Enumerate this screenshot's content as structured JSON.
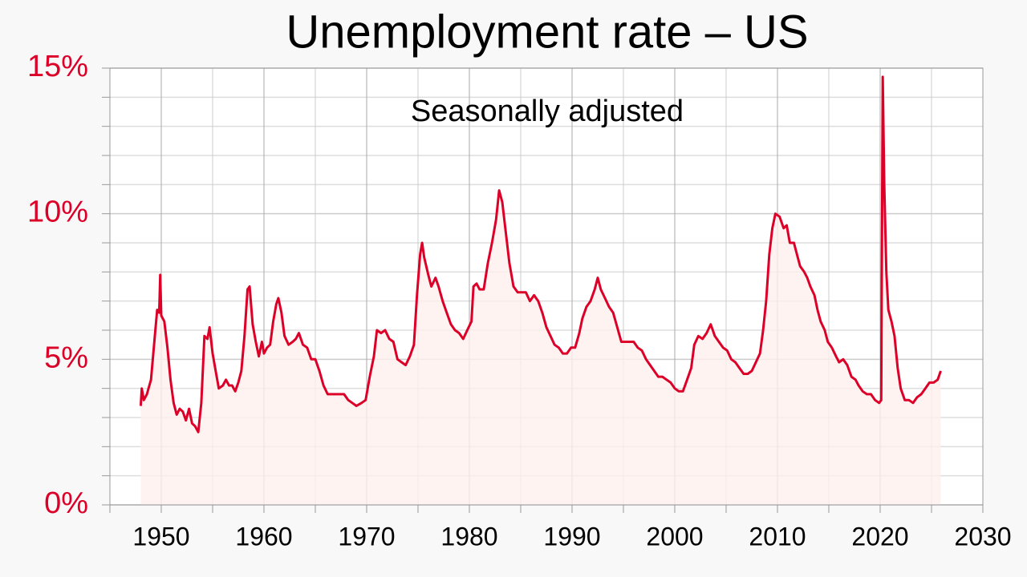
{
  "chart_data": {
    "type": "line",
    "title": "Unemployment rate – US",
    "subtitle": "Seasonally adjusted",
    "color": "#dc0028",
    "fill_color": "#fff0ee",
    "grid": true,
    "xlim": [
      1945,
      2030
    ],
    "xticks": [
      1950,
      1960,
      1970,
      1980,
      1990,
      2000,
      2010,
      2020,
      2030
    ],
    "x_minor_ticks": [
      1945,
      1955,
      1965,
      1975,
      1985,
      1995,
      2005,
      2015,
      2025
    ],
    "ylim": [
      0,
      15
    ],
    "yticks": [
      {
        "value": 0,
        "label": "0%"
      },
      {
        "value": 5,
        "label": "5%"
      },
      {
        "value": 10,
        "label": "10%"
      },
      {
        "value": 15,
        "label": "15%"
      }
    ],
    "y_minor_ticks": [
      1,
      2,
      3,
      4,
      6,
      7,
      8,
      9,
      11,
      12,
      13,
      14
    ],
    "x": [
      1948.0,
      1948.1,
      1948.3,
      1948.6,
      1949.0,
      1949.4,
      1949.6,
      1949.8,
      1949.9,
      1950.0,
      1950.3,
      1950.6,
      1950.9,
      1951.2,
      1951.5,
      1951.8,
      1952.1,
      1952.4,
      1952.7,
      1953.0,
      1953.3,
      1953.6,
      1953.9,
      1954.2,
      1954.5,
      1954.7,
      1955.0,
      1955.3,
      1955.6,
      1956.0,
      1956.3,
      1956.6,
      1956.9,
      1957.2,
      1957.5,
      1957.8,
      1958.1,
      1958.4,
      1958.6,
      1958.9,
      1959.2,
      1959.5,
      1959.8,
      1960.0,
      1960.3,
      1960.6,
      1960.9,
      1961.2,
      1961.4,
      1961.7,
      1962.0,
      1962.4,
      1962.8,
      1963.1,
      1963.4,
      1963.8,
      1964.2,
      1964.6,
      1965.0,
      1965.4,
      1965.8,
      1966.2,
      1966.6,
      1967.0,
      1967.4,
      1967.8,
      1968.2,
      1968.6,
      1969.0,
      1969.5,
      1969.9,
      1970.3,
      1970.7,
      1971.0,
      1971.4,
      1971.8,
      1972.2,
      1972.6,
      1973.0,
      1973.4,
      1973.8,
      1974.2,
      1974.6,
      1974.9,
      1975.2,
      1975.4,
      1975.6,
      1976.0,
      1976.3,
      1976.7,
      1977.0,
      1977.4,
      1977.8,
      1978.2,
      1978.6,
      1979.0,
      1979.4,
      1979.8,
      1980.2,
      1980.4,
      1980.7,
      1981.0,
      1981.4,
      1981.8,
      1982.2,
      1982.6,
      1982.9,
      1983.2,
      1983.5,
      1983.9,
      1984.3,
      1984.7,
      1985.1,
      1985.5,
      1985.9,
      1986.3,
      1986.7,
      1987.1,
      1987.5,
      1987.9,
      1988.3,
      1988.7,
      1989.1,
      1989.5,
      1989.9,
      1990.3,
      1990.7,
      1991.0,
      1991.4,
      1991.8,
      1992.2,
      1992.5,
      1992.8,
      1993.2,
      1993.6,
      1994.0,
      1994.4,
      1994.8,
      1995.2,
      1995.6,
      1996.0,
      1996.4,
      1996.8,
      1997.2,
      1997.6,
      1998.0,
      1998.4,
      1998.8,
      1999.2,
      1999.6,
      2000.0,
      2000.4,
      2000.8,
      2001.2,
      2001.6,
      2001.9,
      2002.3,
      2002.7,
      2003.1,
      2003.5,
      2003.9,
      2004.3,
      2004.7,
      2005.1,
      2005.5,
      2005.9,
      2006.3,
      2006.7,
      2007.1,
      2007.5,
      2007.9,
      2008.3,
      2008.6,
      2008.9,
      2009.2,
      2009.5,
      2009.8,
      2010.2,
      2010.6,
      2010.9,
      2011.2,
      2011.6,
      2011.9,
      2012.2,
      2012.6,
      2012.9,
      2013.2,
      2013.6,
      2013.9,
      2014.2,
      2014.6,
      2014.9,
      2015.3,
      2015.7,
      2016.0,
      2016.4,
      2016.8,
      2017.2,
      2017.6,
      2017.9,
      2018.3,
      2018.7,
      2019.1,
      2019.5,
      2019.9,
      2020.1,
      2020.25,
      2020.4,
      2020.6,
      2020.8,
      2021.1,
      2021.4,
      2021.7,
      2022.0,
      2022.4,
      2022.8,
      2023.2,
      2023.6,
      2024.0,
      2024.4,
      2024.8,
      2025.2,
      2025.6,
      2025.9
    ],
    "values": [
      3.4,
      4.0,
      3.6,
      3.8,
      4.3,
      5.9,
      6.7,
      6.6,
      7.9,
      6.5,
      6.3,
      5.4,
      4.3,
      3.5,
      3.1,
      3.3,
      3.2,
      2.9,
      3.3,
      2.8,
      2.7,
      2.5,
      3.5,
      5.8,
      5.7,
      6.1,
      5.2,
      4.6,
      4.0,
      4.1,
      4.3,
      4.1,
      4.1,
      3.9,
      4.2,
      4.6,
      5.8,
      7.4,
      7.5,
      6.2,
      5.6,
      5.1,
      5.6,
      5.2,
      5.4,
      5.5,
      6.3,
      6.9,
      7.1,
      6.6,
      5.8,
      5.5,
      5.6,
      5.7,
      5.9,
      5.5,
      5.4,
      5.0,
      5.0,
      4.6,
      4.1,
      3.8,
      3.8,
      3.8,
      3.8,
      3.8,
      3.6,
      3.5,
      3.4,
      3.5,
      3.6,
      4.4,
      5.1,
      6.0,
      5.9,
      6.0,
      5.7,
      5.6,
      5.0,
      4.9,
      4.8,
      5.1,
      5.5,
      7.2,
      8.6,
      9.0,
      8.5,
      7.9,
      7.5,
      7.8,
      7.5,
      7.0,
      6.6,
      6.2,
      6.0,
      5.9,
      5.7,
      6.0,
      6.3,
      7.5,
      7.6,
      7.4,
      7.4,
      8.3,
      9.0,
      9.8,
      10.8,
      10.4,
      9.5,
      8.3,
      7.5,
      7.3,
      7.3,
      7.3,
      7.0,
      7.2,
      7.0,
      6.6,
      6.1,
      5.8,
      5.5,
      5.4,
      5.2,
      5.2,
      5.4,
      5.4,
      5.9,
      6.4,
      6.8,
      7.0,
      7.4,
      7.8,
      7.4,
      7.1,
      6.8,
      6.6,
      6.1,
      5.6,
      5.6,
      5.6,
      5.6,
      5.4,
      5.3,
      5.0,
      4.8,
      4.6,
      4.4,
      4.4,
      4.3,
      4.2,
      4.0,
      3.9,
      3.9,
      4.3,
      4.7,
      5.5,
      5.8,
      5.7,
      5.9,
      6.2,
      5.8,
      5.6,
      5.4,
      5.3,
      5.0,
      4.9,
      4.7,
      4.5,
      4.5,
      4.6,
      4.9,
      5.2,
      6.0,
      7.0,
      8.6,
      9.5,
      10.0,
      9.9,
      9.5,
      9.6,
      9.0,
      9.0,
      8.6,
      8.2,
      8.0,
      7.8,
      7.5,
      7.2,
      6.7,
      6.3,
      6.0,
      5.6,
      5.4,
      5.1,
      4.9,
      5.0,
      4.8,
      4.4,
      4.3,
      4.1,
      3.9,
      3.8,
      3.8,
      3.6,
      3.5,
      3.6,
      14.7,
      11.0,
      8.0,
      6.7,
      6.3,
      5.8,
      4.7,
      4.0,
      3.6,
      3.6,
      3.5,
      3.7,
      3.8,
      4.0,
      4.2,
      4.2,
      4.3,
      4.6
    ]
  }
}
